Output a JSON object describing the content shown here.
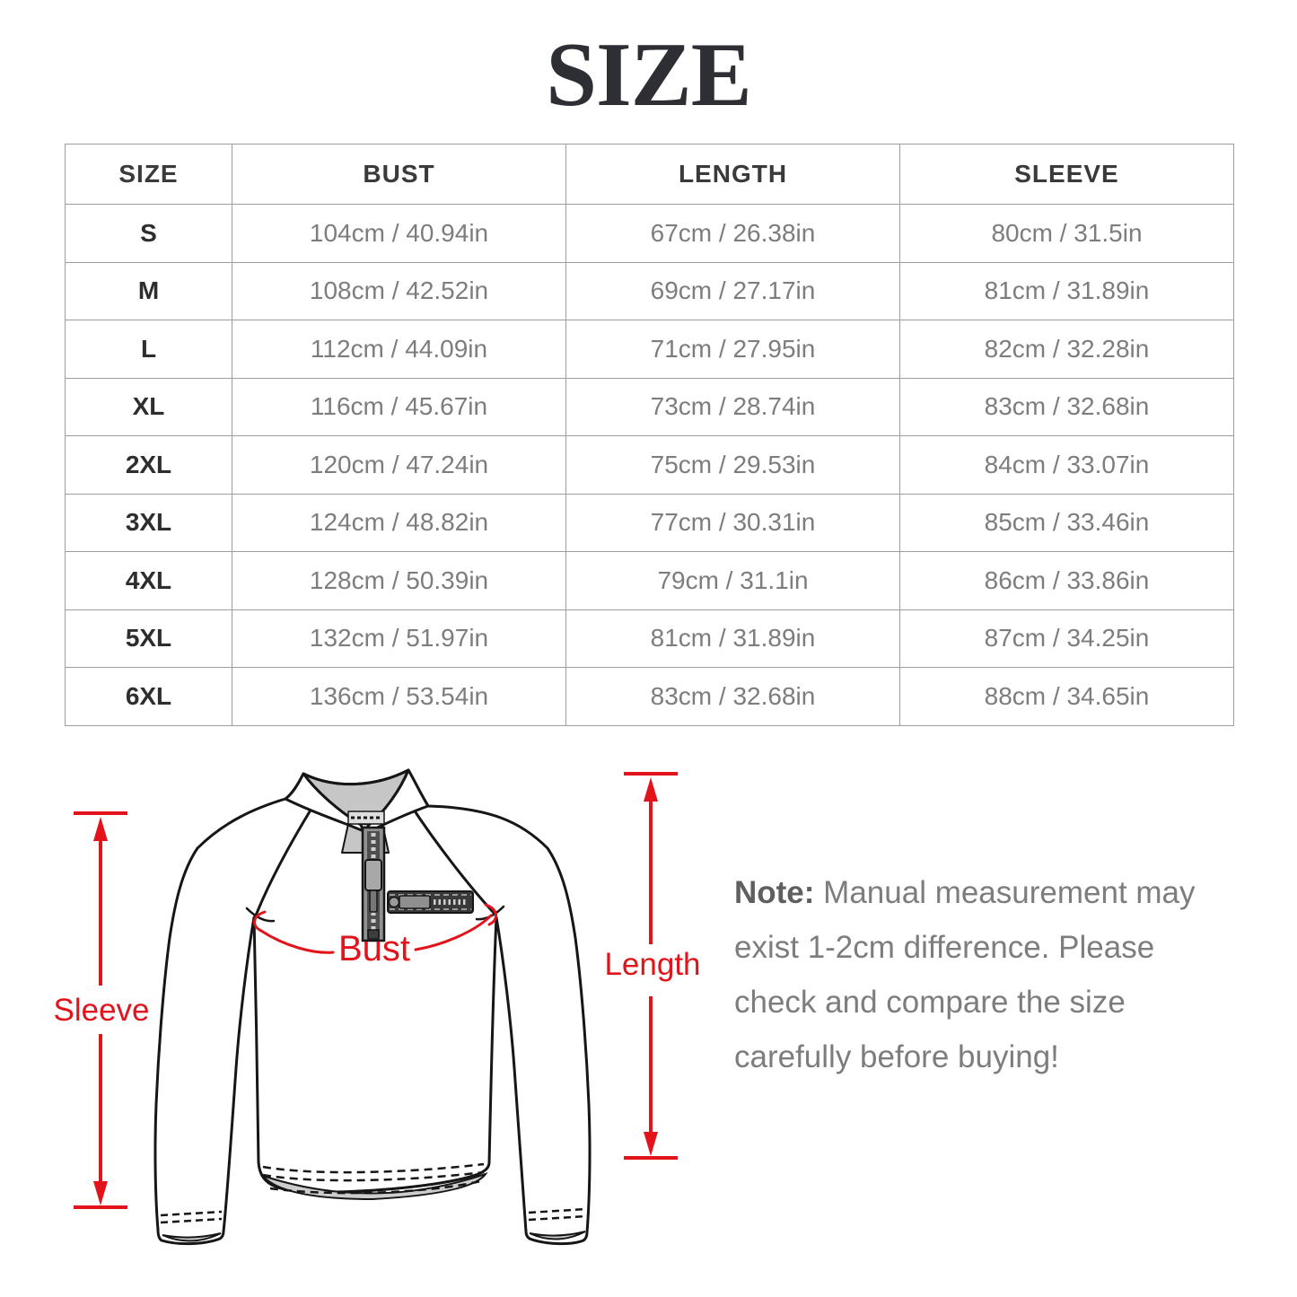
{
  "page": {
    "title": "SIZE"
  },
  "table": {
    "headers": [
      "SIZE",
      "BUST",
      "LENGTH",
      "SLEEVE"
    ],
    "rows": [
      [
        "S",
        "104cm / 40.94in",
        "67cm / 26.38in",
        "80cm / 31.5in"
      ],
      [
        "M",
        "108cm / 42.52in",
        "69cm / 27.17in",
        "81cm / 31.89in"
      ],
      [
        "L",
        "112cm / 44.09in",
        "71cm / 27.95in",
        "82cm / 32.28in"
      ],
      [
        "XL",
        "116cm / 45.67in",
        "73cm / 28.74in",
        "83cm / 32.68in"
      ],
      [
        "2XL",
        "120cm / 47.24in",
        "75cm / 29.53in",
        "84cm / 33.07in"
      ],
      [
        "3XL",
        "124cm / 48.82in",
        "77cm / 30.31in",
        "85cm / 33.46in"
      ],
      [
        "4XL",
        "128cm / 50.39in",
        "79cm / 31.1in",
        "86cm / 33.86in"
      ],
      [
        "5XL",
        "132cm / 51.97in",
        "81cm / 31.89in",
        "87cm / 34.25in"
      ],
      [
        "6XL",
        "136cm / 53.54in",
        "83cm / 32.68in",
        "88cm / 34.65in"
      ]
    ]
  },
  "diagram": {
    "labels": {
      "bust": "Bust",
      "sleeve": "Sleeve",
      "length": "Length"
    },
    "accent_color": "#e2131b"
  },
  "note": {
    "label": "Note:",
    "lines": [
      "Manual measurement may",
      "exist 1-2cm difference. Please",
      "check and compare the size",
      "carefully before buying!"
    ]
  }
}
